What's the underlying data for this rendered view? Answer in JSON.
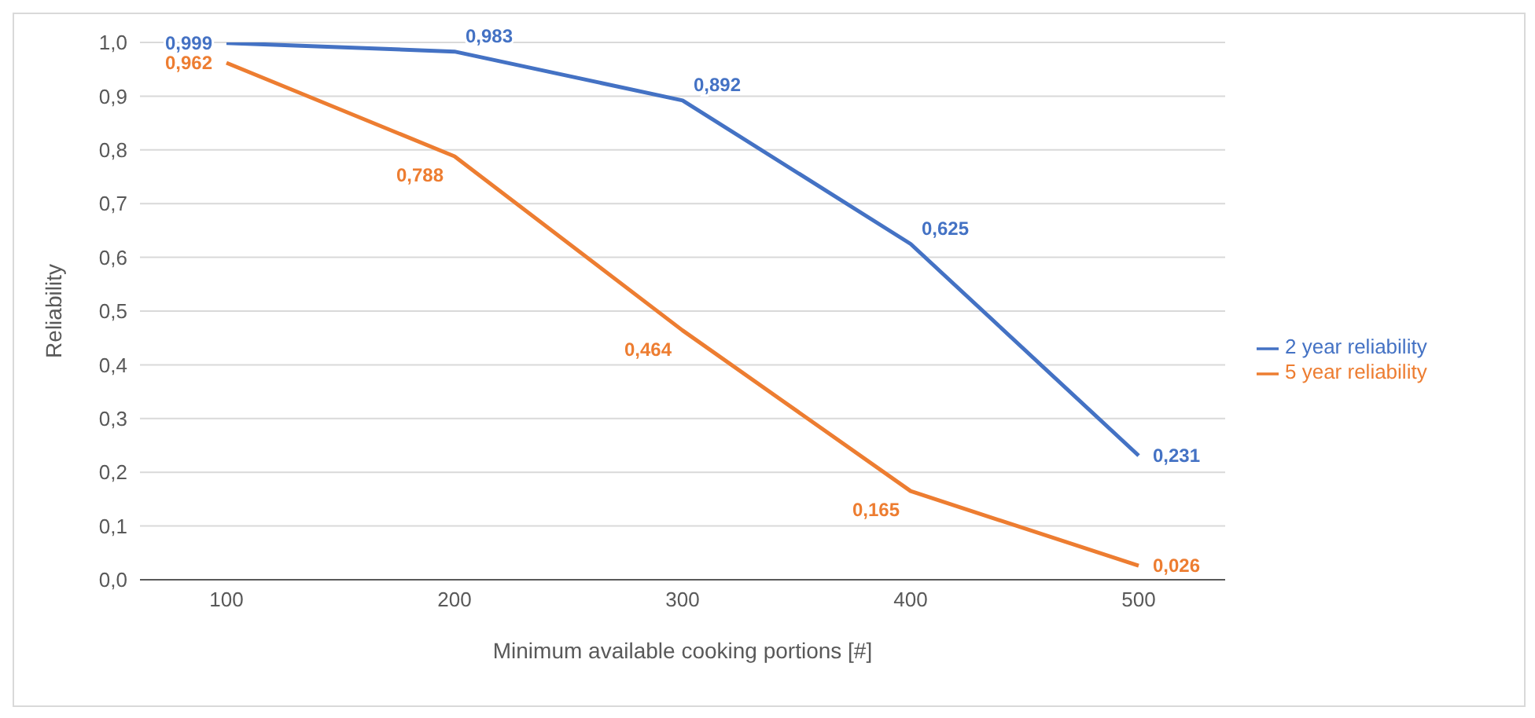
{
  "chart_data": {
    "type": "line",
    "xlabel": "Minimum available cooking portions  [#]",
    "ylabel": "Reliability",
    "categories": [
      "100",
      "200",
      "300",
      "400",
      "500"
    ],
    "series": [
      {
        "name": "2 year reliability",
        "color": "#4472c4",
        "values": [
          0.999,
          0.983,
          0.892,
          0.625,
          0.231
        ],
        "value_labels": [
          "0,999",
          "0,983",
          "0,892",
          "0,625",
          "0,231"
        ]
      },
      {
        "name": "5 year reliability",
        "color": "#ed7d31",
        "values": [
          0.962,
          0.788,
          0.464,
          0.165,
          0.026
        ],
        "value_labels": [
          "0,962",
          "0,788",
          "0,464",
          "0,165",
          "0,026"
        ]
      }
    ],
    "ylim": [
      0,
      1
    ],
    "yticks": [
      {
        "value": 0,
        "label": "0,0"
      },
      {
        "value": 0.1,
        "label": "0,1"
      },
      {
        "value": 0.2,
        "label": "0,2"
      },
      {
        "value": 0.3,
        "label": "0,3"
      },
      {
        "value": 0.4,
        "label": "0,4"
      },
      {
        "value": 0.5,
        "label": "0,5"
      },
      {
        "value": 0.6,
        "label": "0,6"
      },
      {
        "value": 0.7,
        "label": "0,7"
      },
      {
        "value": 0.8,
        "label": "0,8"
      },
      {
        "value": 0.9,
        "label": "0,9"
      },
      {
        "value": 1,
        "label": "1,0"
      }
    ],
    "grid": "y",
    "legend": "right",
    "marker": "none",
    "line_style": "solid"
  }
}
